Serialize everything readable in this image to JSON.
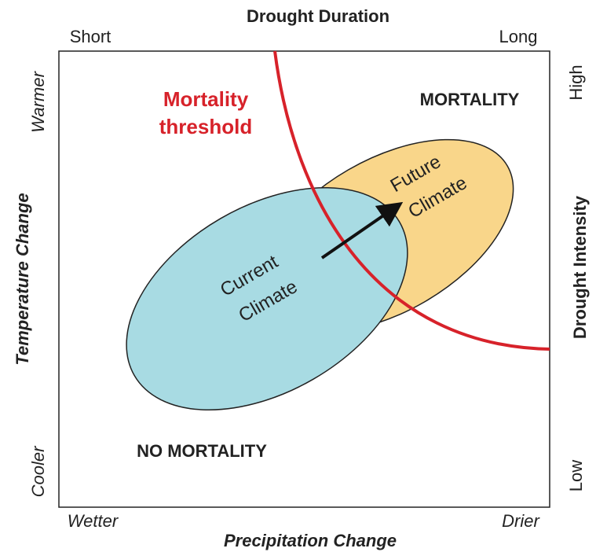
{
  "diagram": {
    "top_axis": {
      "title": "Drought Duration",
      "start": "Short",
      "end": "Long"
    },
    "left_axis": {
      "title": "Temperature Change",
      "start": "Cooler",
      "end": "Warmer"
    },
    "right_axis": {
      "title": "Drought Intensity",
      "start": "Low",
      "end": "High"
    },
    "bottom_axis": {
      "title": "Precipitation Change",
      "start": "Wetter",
      "end": "Drier"
    },
    "threshold_label": [
      "Mortality",
      "threshold"
    ],
    "regions": {
      "upper": "MORTALITY",
      "lower": "NO MORTALITY"
    },
    "current_climate": [
      "Current",
      "Climate"
    ],
    "future_climate": [
      "Future",
      "Climate"
    ]
  }
}
